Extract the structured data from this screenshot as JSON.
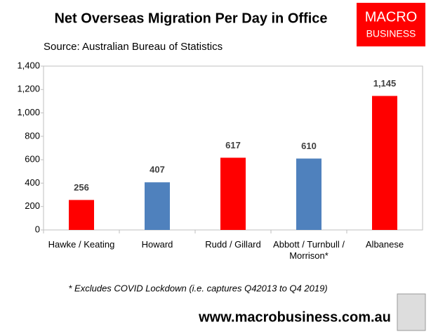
{
  "chart_data": {
    "type": "bar",
    "title": "Net Overseas Migration Per Day in Office",
    "subtitle": "Source: Australian Bureau of Statistics",
    "logo_text": [
      "MACRO",
      "BUSINESS"
    ],
    "footnote": "* Excludes COVID Lockdown (i.e. captures Q42013 to Q4 2019)",
    "website": "www.macrobusiness.com.au",
    "categories": [
      "Hawke / Keating",
      "Howard",
      "Rudd / Gillard",
      "Abbott / Turnbull / Morrison*",
      "Albanese"
    ],
    "values": [
      256,
      407,
      617,
      610,
      1145
    ],
    "value_labels": [
      "256",
      "407",
      "617",
      "610",
      "1,145"
    ],
    "colors": [
      "#ff0000",
      "#4f81bd",
      "#ff0000",
      "#4f81bd",
      "#ff0000"
    ],
    "ylim": [
      0,
      1400
    ],
    "yticks": [
      0,
      200,
      400,
      600,
      800,
      {
        "value": 1000,
        "label": "1,000"
      },
      {
        "value": 1200,
        "label": "1,200"
      },
      {
        "value": 1400,
        "label": "1,400"
      }
    ],
    "grid": false
  }
}
